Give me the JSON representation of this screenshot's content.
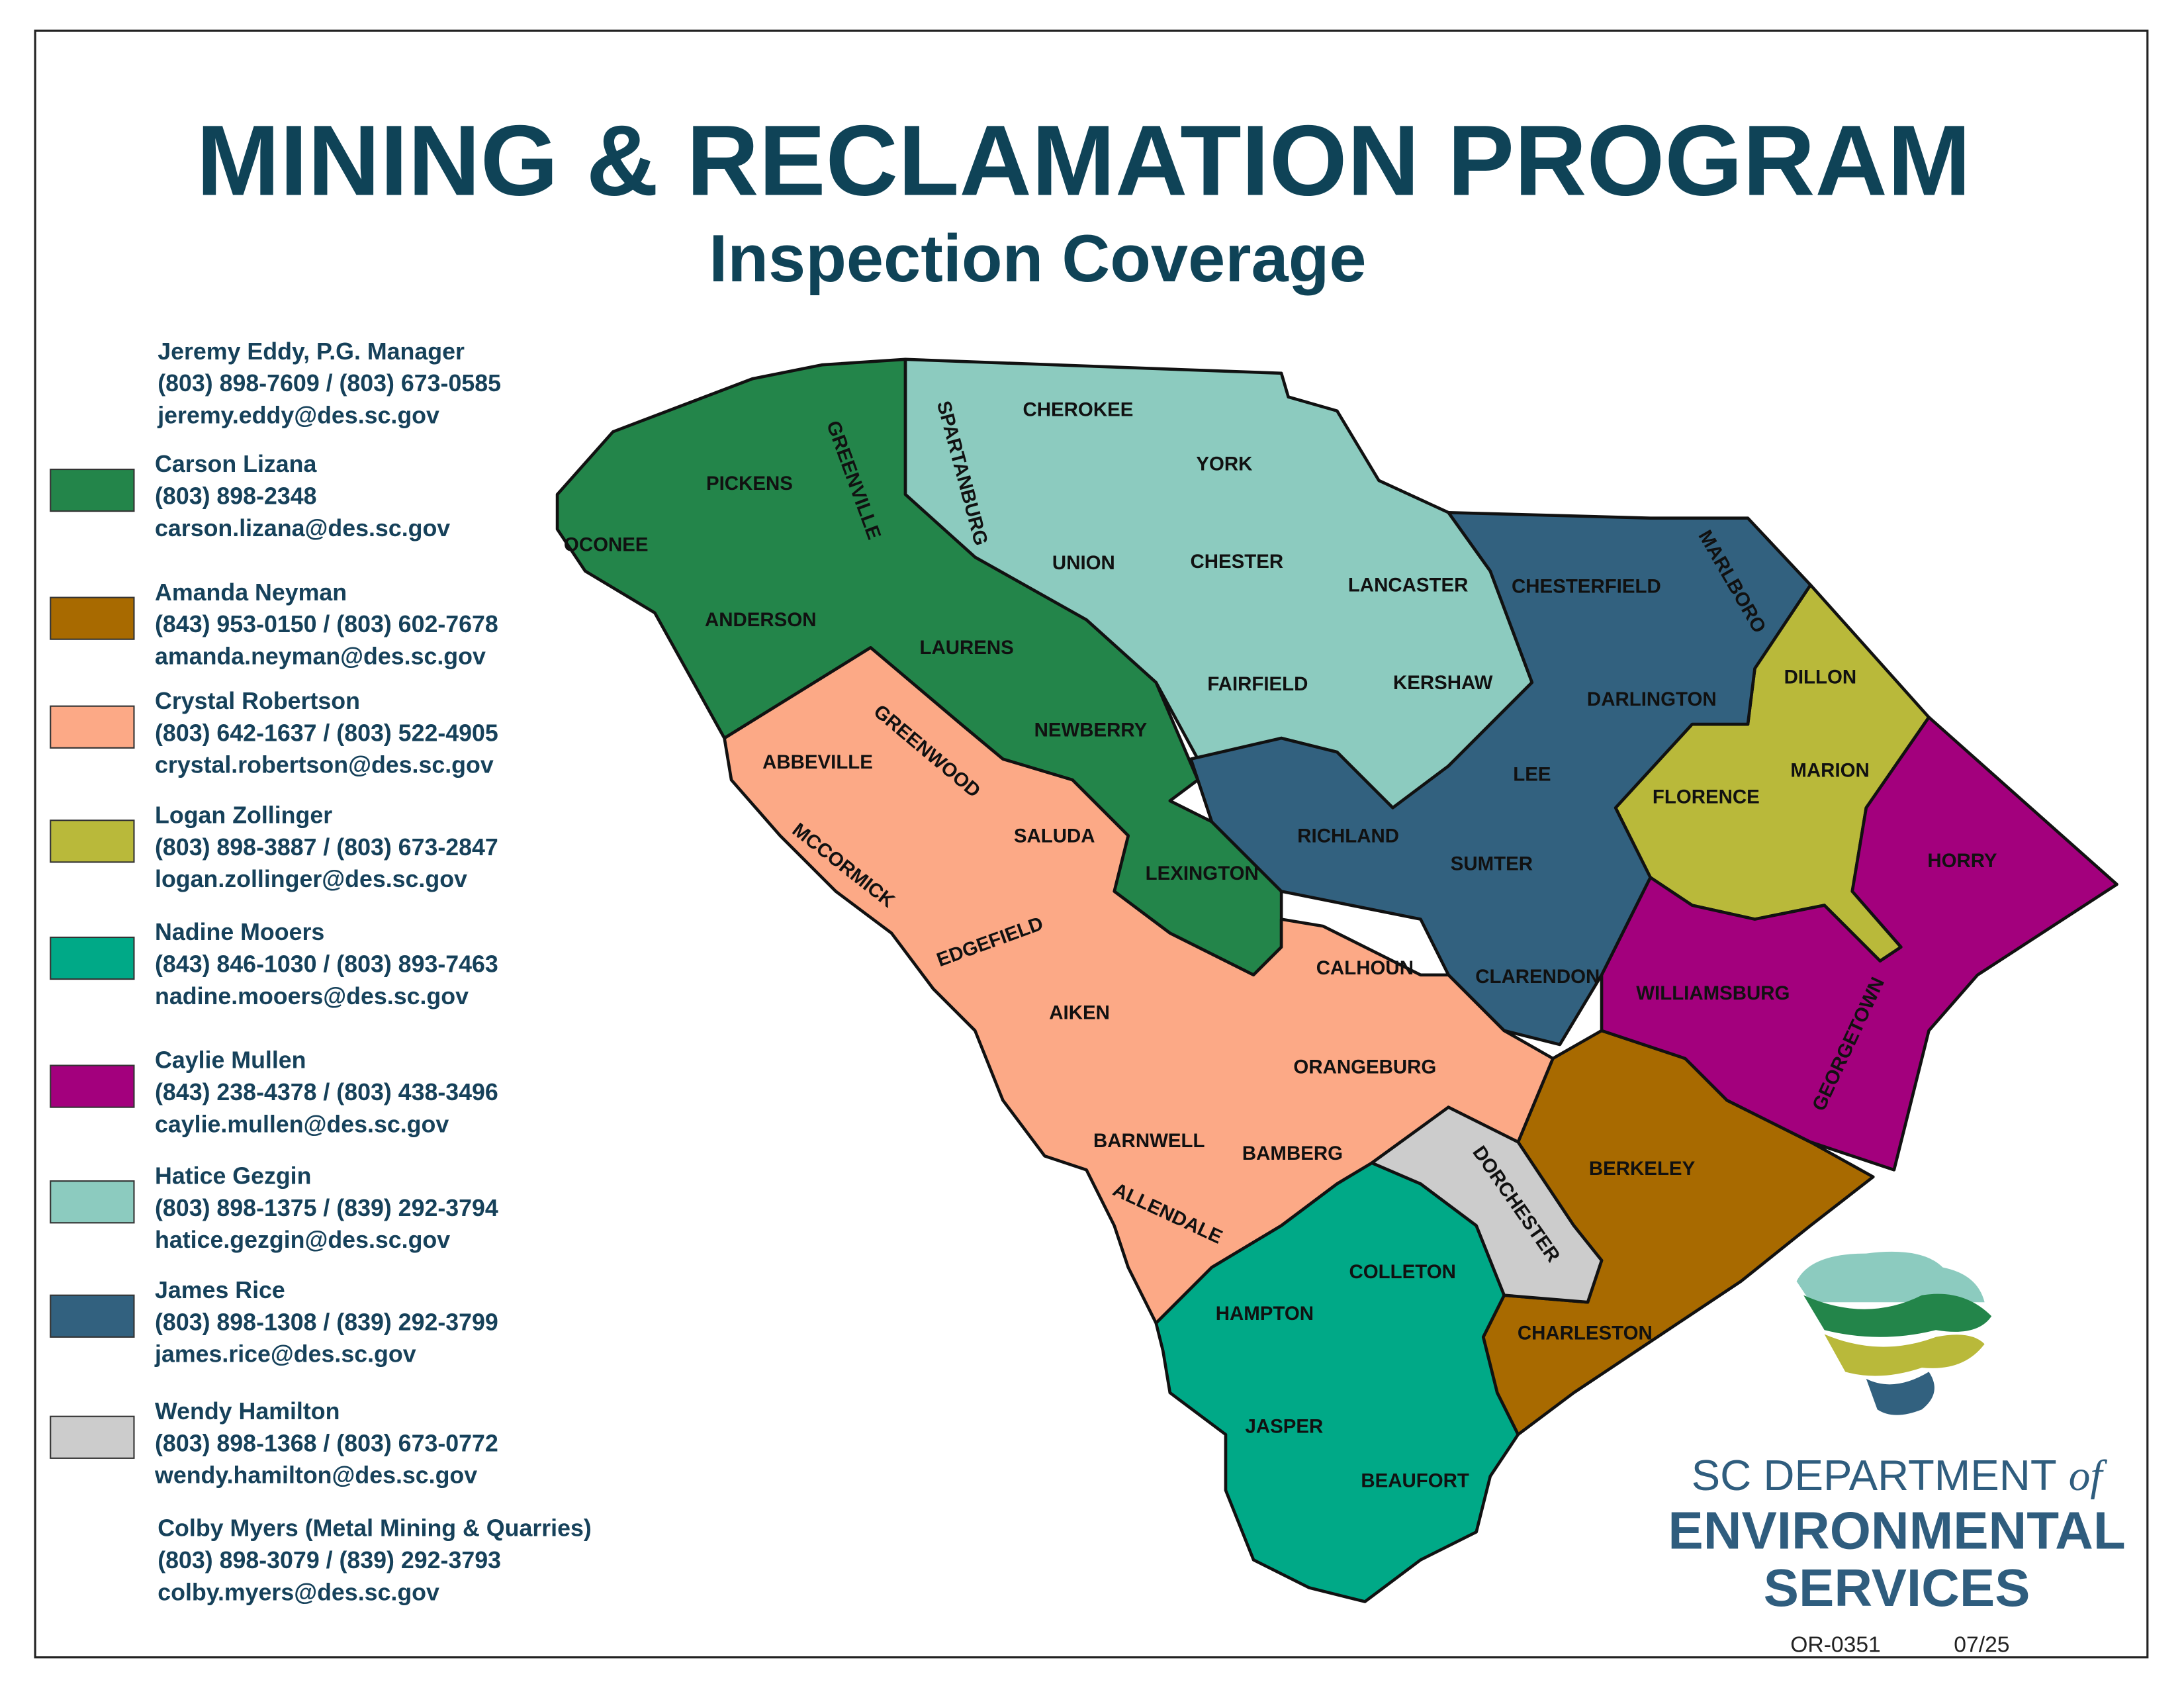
{
  "header": {
    "title": "MINING & RECLAMATION PROGRAM",
    "subtitle": "Inspection Coverage"
  },
  "contacts": [
    {
      "name": "Jeremy Eddy, P.G.  Manager",
      "phone": "(803) 898-7609 / (803) 673-0585",
      "email": "jeremy.eddy@des.sc.gov"
    },
    {
      "name": "Carson Lizana",
      "phone": "(803) 898-2348",
      "email": "carson.lizana@des.sc.gov",
      "color": "#23854a",
      "counties": [
        "OCONEE",
        "PICKENS",
        "GREENVILLE",
        "ANDERSON",
        "LAURENS",
        "NEWBERRY",
        "LEXINGTON"
      ]
    },
    {
      "name": "Amanda Neyman",
      "phone": "(843) 953-0150 / (803) 602-7678",
      "email": "amanda.neyman@des.sc.gov",
      "color": "#a86a00",
      "counties": [
        "BERKELEY",
        "CHARLESTON"
      ]
    },
    {
      "name": "Crystal Robertson",
      "phone": "(803) 642-1637 / (803) 522-4905",
      "email": "crystal.robertson@des.sc.gov",
      "color": "#fca986",
      "counties": [
        "ABBEVILLE",
        "GREENWOOD",
        "SALUDA",
        "MCCORMICK",
        "EDGEFIELD",
        "AIKEN",
        "CALHOUN",
        "ORANGEBURG",
        "BARNWELL",
        "BAMBERG",
        "ALLENDALE"
      ]
    },
    {
      "name": "Logan Zollinger",
      "phone": "(803) 898-3887 / (803) 673-2847",
      "email": "logan.zollinger@des.sc.gov",
      "color": "#b9b93a",
      "counties": [
        "DILLON",
        "MARION",
        "FLORENCE"
      ]
    },
    {
      "name": "Nadine Mooers",
      "phone": "(843) 846-1030 / (803) 893-7463",
      "email": "nadine.mooers@des.sc.gov",
      "color": "#00a987",
      "counties": [
        "COLLETON",
        "HAMPTON",
        "JASPER",
        "BEAUFORT"
      ]
    },
    {
      "name": "Caylie Mullen",
      "phone": "(843) 238-4378 / (803) 438-3496",
      "email": "caylie.mullen@des.sc.gov",
      "color": "#a3007d",
      "counties": [
        "HORRY",
        "WILLIAMSBURG",
        "GEORGETOWN"
      ]
    },
    {
      "name": "Hatice Gezgin",
      "phone": "(803) 898-1375 / (839) 292-3794",
      "email": "hatice.gezgin@des.sc.gov",
      "color": "#8ccbbf",
      "counties": [
        "SPARTANBURG",
        "CHEROKEE",
        "YORK",
        "UNION",
        "CHESTER",
        "LANCASTER",
        "FAIRFIELD",
        "KERSHAW"
      ]
    },
    {
      "name": "James Rice",
      "phone": "(803) 898-1308 / (839) 292-3799",
      "email": "james.rice@des.sc.gov",
      "color": "#32617f",
      "counties": [
        "CHESTERFIELD",
        "MARLBORO",
        "DARLINGTON",
        "LEE",
        "RICHLAND",
        "SUMTER",
        "CLARENDON"
      ]
    },
    {
      "name": "Wendy Hamilton",
      "phone": "(803) 898-1368 / (803) 673-0772",
      "email": "wendy.hamilton@des.sc.gov",
      "color": "#cccccc",
      "counties": [
        "DORCHESTER"
      ]
    },
    {
      "name": "Colby Myers (Metal Mining & Quarries)",
      "phone": "(803) 898-3079 / (839) 292-3793",
      "email": "colby.myers@des.sc.gov"
    }
  ],
  "logo": {
    "line1": "SC DEPARTMENT",
    "of": "of",
    "line2": "ENVIRONMENTAL",
    "line3": "SERVICES"
  },
  "footer": {
    "code": "OR-0351",
    "date": "07/25"
  }
}
